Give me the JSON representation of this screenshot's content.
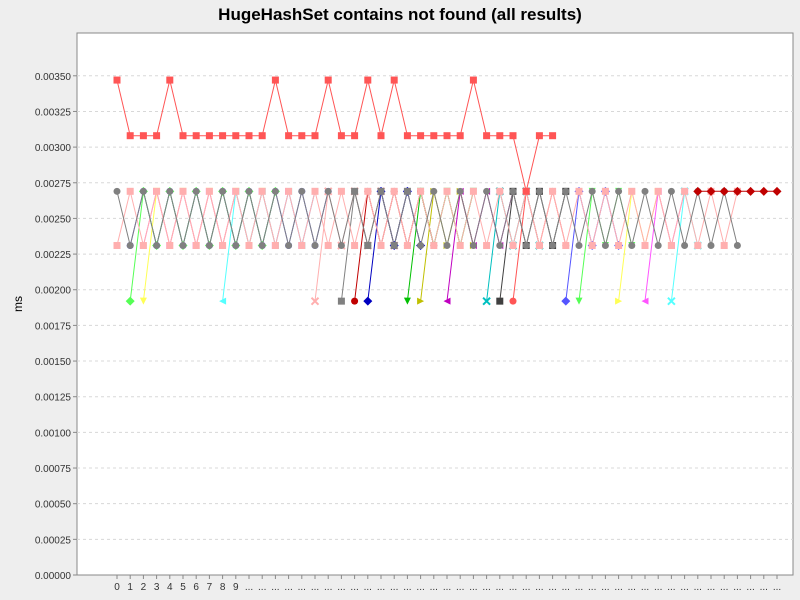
{
  "chart_data": {
    "type": "line",
    "title": "HugeHashSet contains not found (all results)",
    "xlabel": "",
    "ylabel": "ms",
    "ylim": [
      0,
      0.0038
    ],
    "y_ticks": [
      "0.00000",
      "0.00025",
      "0.00050",
      "0.00075",
      "0.00100",
      "0.00125",
      "0.00150",
      "0.00175",
      "0.00200",
      "0.00225",
      "0.00250",
      "0.00275",
      "0.00300",
      "0.00325",
      "0.00350"
    ],
    "y_tick_values": [
      0,
      0.00025,
      0.0005,
      0.00075,
      0.001,
      0.00125,
      0.0015,
      0.00175,
      0.002,
      0.00225,
      0.0025,
      0.00275,
      0.003,
      0.00325,
      0.0035
    ],
    "x_tick_labels": [
      "0",
      "1",
      "2",
      "3",
      "4",
      "5",
      "6",
      "7",
      "8",
      "9",
      "...",
      "...",
      "...",
      "...",
      "...",
      "...",
      "...",
      "...",
      "...",
      "...",
      "...",
      "...",
      "...",
      "...",
      "...",
      "...",
      "...",
      "...",
      "...",
      "...",
      "...",
      "...",
      "...",
      "...",
      "...",
      "...",
      "...",
      "...",
      "...",
      "...",
      "...",
      "...",
      "...",
      "...",
      "...",
      "...",
      "...",
      "...",
      "...",
      "...",
      "..."
    ],
    "grid": true,
    "legend": "none",
    "colors": [
      "#ff5555",
      "#5555ff",
      "#55ff55",
      "#ffff55",
      "#ff55ff",
      "#55ffff",
      "#ffafaf",
      "#808080",
      "#c00000",
      "#0000c0",
      "#00c000",
      "#c0c000",
      "#c000c0",
      "#00c0c0",
      "#404040",
      "#ff5555",
      "#5555ff",
      "#55ff55",
      "#ffff55",
      "#ff55ff",
      "#55ffff",
      "#ffafaf",
      "#808080",
      "#c00000",
      "#0000c0",
      "#00c000",
      "#c0c000",
      "#c000c0",
      "#00c0c0",
      "#404040",
      "#ff8080",
      "#8080ff",
      "#80ff80",
      "#ffff80",
      "#ff80ff",
      "#80ffff",
      "#c0c0c0",
      "#602020",
      "#202060",
      "#206020",
      "#606020",
      "#602060",
      "#206060",
      "#a03030",
      "#3030a0",
      "#30a030",
      "#a0a030",
      "#a030a0",
      "#30a0a0"
    ],
    "series": [
      {
        "values": [
          0.00347,
          0.00308,
          0.00308,
          0.00308,
          0.00347,
          0.00308,
          0.00308,
          0.00308,
          0.00308,
          0.00308,
          0.00308,
          0.00308,
          0.00347,
          0.00308,
          0.00308,
          0.00308,
          0.00347,
          0.00308,
          0.00308,
          0.00347,
          0.00308,
          0.00347,
          0.00308,
          0.00308,
          0.00308,
          0.00308,
          0.00308,
          0.00347,
          0.00308,
          0.00308,
          0.00308,
          0.00269,
          0.00308,
          0.00308
        ]
      },
      {
        "start": 1,
        "values": [
          0.00231,
          0.00269,
          0.00231,
          0.00269,
          0.00231,
          0.00269,
          0.00231,
          0.00269,
          0.00231,
          0.00269,
          0.00231,
          0.00269,
          0.00231,
          0.00269,
          0.00231,
          0.00269
        ]
      },
      {
        "start": 1,
        "values": [
          0.00192,
          0.00269,
          0.00231,
          0.00269,
          0.00231,
          0.00269,
          0.00231,
          0.00269,
          0.00231,
          0.00269,
          0.00231,
          0.00269
        ]
      },
      {
        "start": 2,
        "values": [
          0.00192,
          0.00269,
          0.00231,
          0.00269,
          0.00231,
          0.00269,
          0.00231,
          0.00269,
          0.00231,
          0.00269,
          0.00231
        ]
      },
      {
        "start": 2,
        "values": [
          0.00231,
          0.00269,
          0.00231,
          0.00269,
          0.00231,
          0.00269,
          0.00231,
          0.00269,
          0.00231,
          0.00269,
          0.00231,
          0.00269,
          0.00231,
          0.00269
        ]
      },
      {
        "start": 8,
        "values": [
          0.00192,
          0.00269,
          0.00231,
          0.00269,
          0.00231,
          0.00269,
          0.00231,
          0.00269
        ]
      },
      {
        "start": 15,
        "values": [
          0.00192,
          0.00269,
          0.00231,
          0.00269,
          0.00231,
          0.00269,
          0.00231
        ]
      },
      {
        "start": 17,
        "values": [
          0.00192,
          0.00269,
          0.00231,
          0.00269,
          0.00231,
          0.00269
        ]
      },
      {
        "start": 18,
        "values": [
          0.00192,
          0.00269,
          0.00231,
          0.00269,
          0.00231,
          0.00269,
          0.00231
        ]
      },
      {
        "start": 19,
        "values": [
          0.00192,
          0.00269,
          0.00231,
          0.00269,
          0.00231
        ]
      },
      {
        "start": 22,
        "values": [
          0.00192,
          0.00269,
          0.00231,
          0.00269,
          0.00231,
          0.00269
        ]
      },
      {
        "start": 23,
        "values": [
          0.00192,
          0.00269,
          0.00231,
          0.00269,
          0.00231
        ]
      },
      {
        "start": 25,
        "values": [
          0.00192,
          0.00269,
          0.00231,
          0.00269,
          0.00231,
          0.00269
        ]
      },
      {
        "start": 28,
        "values": [
          0.00192,
          0.00269,
          0.00231,
          0.00269,
          0.00231
        ]
      },
      {
        "start": 29,
        "values": [
          0.00192,
          0.00269,
          0.00231,
          0.00269,
          0.00231,
          0.00269
        ]
      },
      {
        "start": 30,
        "values": [
          0.00192,
          0.00269,
          0.00231,
          0.00269,
          0.00231
        ]
      },
      {
        "start": 34,
        "values": [
          0.00192,
          0.00269,
          0.00231,
          0.00269,
          0.00231
        ]
      },
      {
        "start": 35,
        "values": [
          0.00192,
          0.00269,
          0.00231,
          0.00269,
          0.00231
        ]
      },
      {
        "start": 38,
        "values": [
          0.00192,
          0.00269,
          0.00231,
          0.00269,
          0.00231
        ]
      },
      {
        "start": 40,
        "values": [
          0.00192,
          0.00269,
          0.00231,
          0.00269
        ]
      },
      {
        "start": 42,
        "values": [
          0.00192,
          0.00269,
          0.00231
        ]
      },
      {
        "start": 0,
        "values": [
          0.00231,
          0.00269,
          0.00231,
          0.00269,
          0.00231,
          0.00269,
          0.00231,
          0.00269,
          0.00231,
          0.00269,
          0.00231,
          0.00269,
          0.00231,
          0.00269,
          0.00231,
          0.00269,
          0.00231,
          0.00269,
          0.00231,
          0.00269,
          0.00231,
          0.00269,
          0.00231,
          0.00269,
          0.00231,
          0.00269,
          0.00231,
          0.00269,
          0.00231,
          0.00269,
          0.00231,
          0.00269,
          0.00231,
          0.00269,
          0.00231,
          0.00269,
          0.00231,
          0.00269,
          0.00231,
          0.00269,
          0.00231,
          0.00269,
          0.00231,
          0.00269,
          0.00231,
          0.00269,
          0.00231,
          0.00269
        ]
      },
      {
        "start": 0,
        "values": [
          0.00269,
          0.00231,
          0.00269,
          0.00231,
          0.00269,
          0.00231,
          0.00269,
          0.00231,
          0.00269,
          0.00231,
          0.00269,
          0.00231,
          0.00269,
          0.00231,
          0.00269,
          0.00231,
          0.00269,
          0.00231,
          0.00269,
          0.00231,
          0.00269,
          0.00231,
          0.00269,
          0.00231,
          0.00269,
          0.00231,
          0.00269,
          0.00231,
          0.00269,
          0.00231,
          0.00269,
          0.00231,
          0.00269,
          0.00231,
          0.00269,
          0.00231,
          0.00269,
          0.00231,
          0.00269,
          0.00231,
          0.00269,
          0.00231,
          0.00269,
          0.00231,
          0.00269,
          0.00231,
          0.00269,
          0.00231
        ]
      },
      {
        "start": 44,
        "values": [
          0.00269,
          0.00269,
          0.00269,
          0.00269,
          0.00269,
          0.00269,
          0.00269
        ]
      }
    ]
  }
}
